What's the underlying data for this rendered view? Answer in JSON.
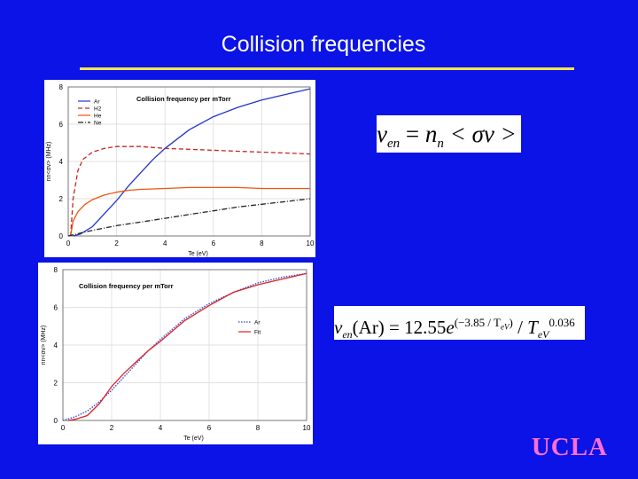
{
  "slide": {
    "title": "Collision frequencies",
    "logo": "UCLA",
    "accent_rule_color": "#f5e64a",
    "background_color": "#0b13e6"
  },
  "equation1": {
    "text": "ν_en = n_n < σv >",
    "nu": "ν",
    "en": "en",
    "eq": " = ",
    "n": "n",
    "nsub": "n",
    "rhs": " < σv >"
  },
  "equation2": {
    "text": "ν_en(Ar) = 12.55 e^(−3.85/T_eV) / T_eV^0.036",
    "nu": "ν",
    "en": "en",
    "ar": "(Ar) = 12.55",
    "e": "e",
    "exponent": "(−3.85 / T",
    "exp_sub": "eV",
    "exp_close": ")",
    "slash": " / ",
    "T": "T",
    "T_sub": "eV",
    "T_pow": "0.036"
  },
  "chart_data": [
    {
      "type": "line",
      "title": "Collision frequency per mTorr",
      "xlabel": "Te (eV)",
      "ylabel": "nn<σv> (MHz)",
      "xlim": [
        0,
        10
      ],
      "ylim": [
        0,
        8
      ],
      "xticks": [
        "0",
        "2",
        "4",
        "6",
        "8",
        "10"
      ],
      "yticks": [
        "0",
        "2",
        "4",
        "6",
        "8"
      ],
      "grid": true,
      "legend_position": "top-left",
      "series": [
        {
          "name": "Ar",
          "color": "#2233cc",
          "dash": "solid",
          "x": [
            0.2,
            0.5,
            1,
            1.5,
            2,
            2.5,
            3,
            3.5,
            4,
            5,
            6,
            7,
            8,
            9,
            10
          ],
          "y": [
            0.0,
            0.1,
            0.5,
            1.2,
            1.9,
            2.7,
            3.4,
            4.1,
            4.7,
            5.7,
            6.4,
            6.9,
            7.3,
            7.6,
            7.9
          ]
        },
        {
          "name": "H2",
          "color": "#cc2222",
          "dash": "dashed",
          "x": [
            0.1,
            0.2,
            0.4,
            0.6,
            1,
            1.5,
            2,
            3,
            4,
            5,
            6,
            7,
            8,
            9,
            10
          ],
          "y": [
            0.0,
            2.0,
            3.5,
            4.1,
            4.5,
            4.7,
            4.8,
            4.8,
            4.7,
            4.65,
            4.6,
            4.55,
            4.5,
            4.45,
            4.4
          ]
        },
        {
          "name": "He",
          "color": "#ee5511",
          "dash": "solid",
          "x": [
            0.1,
            0.2,
            0.4,
            0.7,
            1,
            1.5,
            2,
            2.5,
            3,
            4,
            5,
            6,
            7,
            8,
            9,
            10
          ],
          "y": [
            0.0,
            0.8,
            1.3,
            1.7,
            1.95,
            2.2,
            2.35,
            2.45,
            2.5,
            2.55,
            2.6,
            2.6,
            2.6,
            2.55,
            2.55,
            2.55
          ]
        },
        {
          "name": "Ne",
          "color": "#222222",
          "dash": "dashdot",
          "x": [
            0,
            1,
            2,
            3,
            4,
            5,
            6,
            7,
            8,
            9,
            10
          ],
          "y": [
            0.0,
            0.3,
            0.55,
            0.75,
            0.95,
            1.15,
            1.35,
            1.55,
            1.7,
            1.85,
            2.0
          ]
        }
      ]
    },
    {
      "type": "line",
      "title": "Collision frequency per mTorr",
      "xlabel": "Te (eV)",
      "ylabel": "nn<σv> (MHz)",
      "xlim": [
        0,
        10
      ],
      "ylim": [
        0,
        8
      ],
      "xticks": [
        "0",
        "2",
        "4",
        "6",
        "8",
        "10"
      ],
      "yticks": [
        "0",
        "2",
        "4",
        "6",
        "8"
      ],
      "grid": true,
      "legend_position": "right",
      "series": [
        {
          "name": "Ar",
          "color": "#2244dd",
          "dash": "dotted",
          "x": [
            0,
            0.5,
            1,
            1.5,
            2,
            2.5,
            3,
            3.5,
            4,
            5,
            6,
            7,
            8,
            9,
            10
          ],
          "y": [
            0.0,
            0.2,
            0.5,
            1.0,
            1.6,
            2.3,
            3.0,
            3.7,
            4.3,
            5.4,
            6.2,
            6.8,
            7.3,
            7.6,
            7.8
          ]
        },
        {
          "name": "Fit",
          "color": "#dd2222",
          "dash": "solid",
          "x": [
            0.2,
            0.5,
            1,
            1.5,
            2,
            2.5,
            3,
            3.5,
            4,
            5,
            6,
            7,
            8,
            9,
            10
          ],
          "y": [
            0.0,
            0.06,
            0.26,
            0.9,
            1.8,
            2.5,
            3.1,
            3.7,
            4.2,
            5.3,
            6.1,
            6.8,
            7.2,
            7.5,
            7.8
          ]
        }
      ]
    }
  ]
}
